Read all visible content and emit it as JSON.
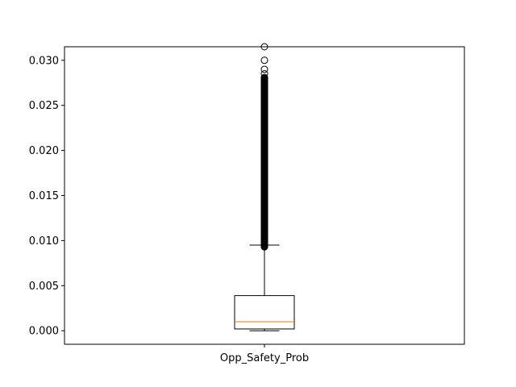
{
  "chart_data": {
    "type": "boxplot",
    "categories": [
      "Opp_Safety_Prob"
    ],
    "ylim": [
      -0.0015,
      0.0315
    ],
    "yticks": [
      0.0,
      0.005,
      0.01,
      0.015,
      0.02,
      0.025,
      0.03
    ],
    "ytick_labels": [
      "0.000",
      "0.005",
      "0.010",
      "0.015",
      "0.020",
      "0.025",
      "0.030"
    ],
    "grid": false,
    "series": [
      {
        "stats": {
          "whisker_low": 0.0,
          "q1": 0.0002,
          "median": 0.001,
          "q3": 0.0039,
          "whisker_high": 0.0095
        },
        "outlier_dense_range": [
          0.0093,
          0.028
        ],
        "outliers_sparse": [
          0.0281,
          0.0285,
          0.029,
          0.03,
          0.0315
        ]
      }
    ],
    "colors": {
      "box": "#000000",
      "median": "#ff7f0e",
      "outlier_edge": "#000000"
    }
  }
}
